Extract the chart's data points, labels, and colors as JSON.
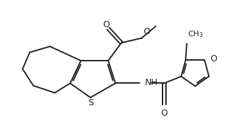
{
  "bg_color": "#ffffff",
  "line_color": "#222222",
  "line_width": 1.4,
  "fig_width": 3.24,
  "fig_height": 1.98,
  "dpi": 100,
  "xlim": [
    0,
    9.5
  ],
  "ylim": [
    0,
    5.5
  ]
}
